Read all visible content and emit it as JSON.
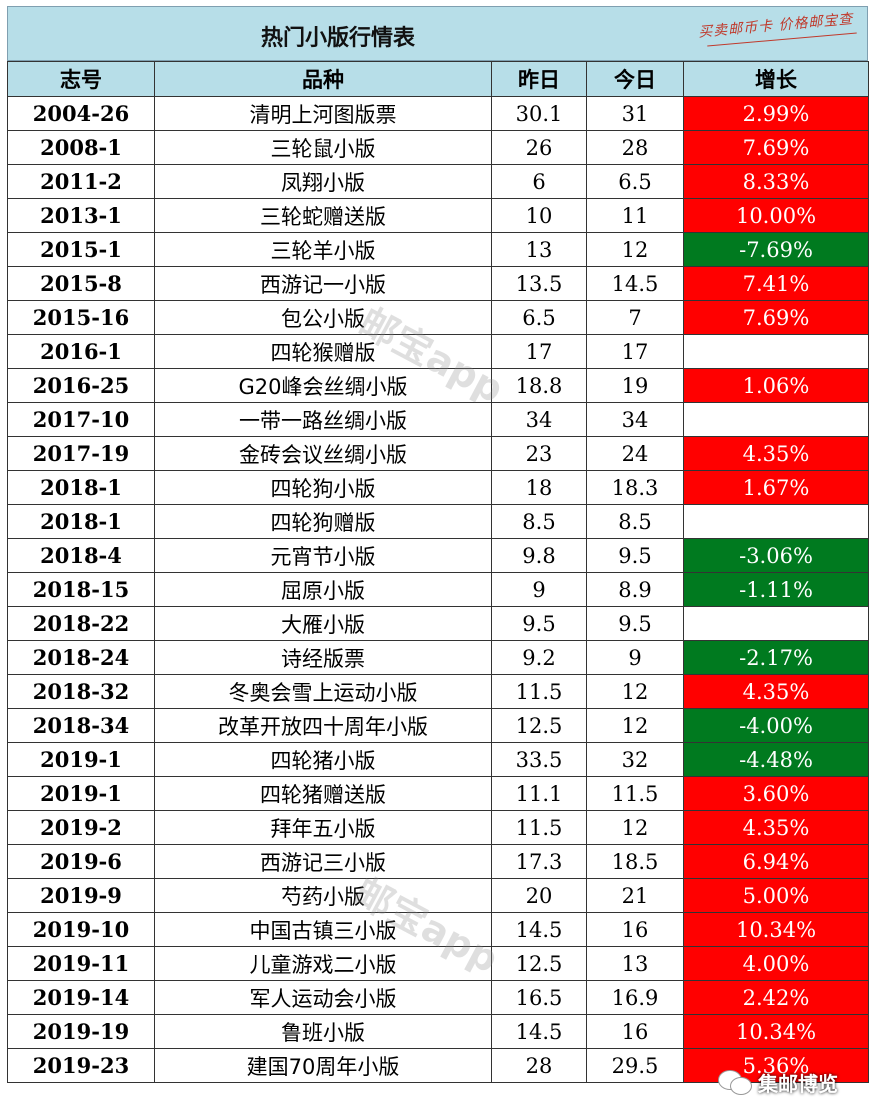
{
  "header": {
    "title": "热门小版行情表",
    "stamp": "买卖邮币卡 价格邮宝查"
  },
  "columns": [
    "志号",
    "品种",
    "昨日",
    "今日",
    "增长"
  ],
  "rows": [
    {
      "code": "2004-26",
      "name": "清明上河图版票",
      "yesterday": "30.1",
      "today": "31",
      "growth": "2.99%",
      "trend": "up"
    },
    {
      "code": "2008-1",
      "name": "三轮鼠小版",
      "yesterday": "26",
      "today": "28",
      "growth": "7.69%",
      "trend": "up"
    },
    {
      "code": "2011-2",
      "name": "凤翔小版",
      "yesterday": "6",
      "today": "6.5",
      "growth": "8.33%",
      "trend": "up"
    },
    {
      "code": "2013-1",
      "name": "三轮蛇赠送版",
      "yesterday": "10",
      "today": "11",
      "growth": "10.00%",
      "trend": "up"
    },
    {
      "code": "2015-1",
      "name": "三轮羊小版",
      "yesterday": "13",
      "today": "12",
      "growth": "-7.69%",
      "trend": "down"
    },
    {
      "code": "2015-8",
      "name": "西游记一小版",
      "yesterday": "13.5",
      "today": "14.5",
      "growth": "7.41%",
      "trend": "up"
    },
    {
      "code": "2015-16",
      "name": "包公小版",
      "yesterday": "6.5",
      "today": "7",
      "growth": "7.69%",
      "trend": "up"
    },
    {
      "code": "2016-1",
      "name": "四轮猴赠版",
      "yesterday": "17",
      "today": "17",
      "growth": "",
      "trend": "flat"
    },
    {
      "code": "2016-25",
      "name": "G20峰会丝绸小版",
      "yesterday": "18.8",
      "today": "19",
      "growth": "1.06%",
      "trend": "up"
    },
    {
      "code": "2017-10",
      "name": "一带一路丝绸小版",
      "yesterday": "34",
      "today": "34",
      "growth": "",
      "trend": "flat"
    },
    {
      "code": "2017-19",
      "name": "金砖会议丝绸小版",
      "yesterday": "23",
      "today": "24",
      "growth": "4.35%",
      "trend": "up"
    },
    {
      "code": "2018-1",
      "name": "四轮狗小版",
      "yesterday": "18",
      "today": "18.3",
      "growth": "1.67%",
      "trend": "up"
    },
    {
      "code": "2018-1",
      "name": "四轮狗赠版",
      "yesterday": "8.5",
      "today": "8.5",
      "growth": "",
      "trend": "flat"
    },
    {
      "code": "2018-4",
      "name": "元宵节小版",
      "yesterday": "9.8",
      "today": "9.5",
      "growth": "-3.06%",
      "trend": "down"
    },
    {
      "code": "2018-15",
      "name": "屈原小版",
      "yesterday": "9",
      "today": "8.9",
      "growth": "-1.11%",
      "trend": "down"
    },
    {
      "code": "2018-22",
      "name": "大雁小版",
      "yesterday": "9.5",
      "today": "9.5",
      "growth": "",
      "trend": "flat"
    },
    {
      "code": "2018-24",
      "name": "诗经版票",
      "yesterday": "9.2",
      "today": "9",
      "growth": "-2.17%",
      "trend": "down"
    },
    {
      "code": "2018-32",
      "name": "冬奥会雪上运动小版",
      "yesterday": "11.5",
      "today": "12",
      "growth": "4.35%",
      "trend": "up"
    },
    {
      "code": "2018-34",
      "name": "改革开放四十周年小版",
      "yesterday": "12.5",
      "today": "12",
      "growth": "-4.00%",
      "trend": "down"
    },
    {
      "code": "2019-1",
      "name": "四轮猪小版",
      "yesterday": "33.5",
      "today": "32",
      "growth": "-4.48%",
      "trend": "down"
    },
    {
      "code": "2019-1",
      "name": "四轮猪赠送版",
      "yesterday": "11.1",
      "today": "11.5",
      "growth": "3.60%",
      "trend": "up"
    },
    {
      "code": "2019-2",
      "name": "拜年五小版",
      "yesterday": "11.5",
      "today": "12",
      "growth": "4.35%",
      "trend": "up"
    },
    {
      "code": "2019-6",
      "name": "西游记三小版",
      "yesterday": "17.3",
      "today": "18.5",
      "growth": "6.94%",
      "trend": "up"
    },
    {
      "code": "2019-9",
      "name": "芍药小版",
      "yesterday": "20",
      "today": "21",
      "growth": "5.00%",
      "trend": "up"
    },
    {
      "code": "2019-10",
      "name": "中国古镇三小版",
      "yesterday": "14.5",
      "today": "16",
      "growth": "10.34%",
      "trend": "up"
    },
    {
      "code": "2019-11",
      "name": "儿童游戏二小版",
      "yesterday": "12.5",
      "today": "13",
      "growth": "4.00%",
      "trend": "up"
    },
    {
      "code": "2019-14",
      "name": "军人运动会小版",
      "yesterday": "16.5",
      "today": "16.9",
      "growth": "2.42%",
      "trend": "up"
    },
    {
      "code": "2019-19",
      "name": "鲁班小版",
      "yesterday": "14.5",
      "today": "16",
      "growth": "10.34%",
      "trend": "up"
    },
    {
      "code": "2019-23",
      "name": "建国70周年小版",
      "yesterday": "28",
      "today": "29.5",
      "growth": "5.36%",
      "trend": "up"
    }
  ],
  "watermark": "邮宝app",
  "badge": {
    "label": "集邮博览",
    "icon": "wechat-icon"
  },
  "colors": {
    "up": "#ff0000",
    "down": "#007a1f",
    "header": "#b7dee8"
  }
}
